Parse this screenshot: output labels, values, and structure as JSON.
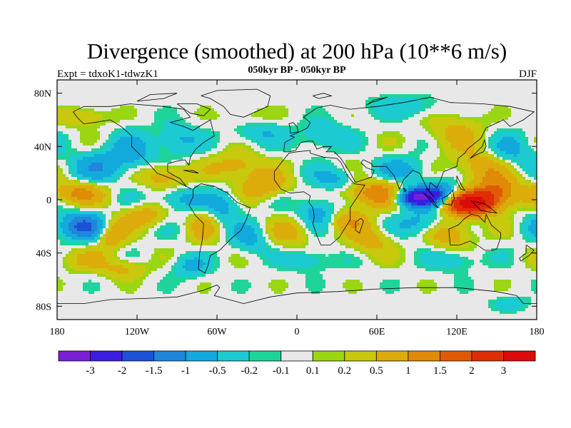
{
  "chart_data": {
    "type": "heatmap",
    "title": "Divergence (smoothed) at 200 hPa (10**6 m/s)",
    "subtitle": "050kyr BP - 050kyr BP",
    "left_label": "Expt = tdxoK1-tdwzK1",
    "right_label": "DJF",
    "x_range": [
      -180,
      180
    ],
    "y_range": [
      -90,
      90
    ],
    "x_ticks": [
      {
        "value": -180,
        "label": "180"
      },
      {
        "value": -120,
        "label": "120W"
      },
      {
        "value": -60,
        "label": "60W"
      },
      {
        "value": 0,
        "label": "0"
      },
      {
        "value": 60,
        "label": "60E"
      },
      {
        "value": 120,
        "label": "120E"
      },
      {
        "value": 180,
        "label": "180"
      }
    ],
    "y_ticks": [
      {
        "value": 80,
        "label": "80N"
      },
      {
        "value": 40,
        "label": "40N"
      },
      {
        "value": 0,
        "label": "0"
      },
      {
        "value": -40,
        "label": "40S"
      },
      {
        "value": -80,
        "label": "80S"
      }
    ],
    "colorbar": {
      "labels": [
        "-3",
        "-2",
        "-1.5",
        "-1",
        "-0.5",
        "-0.2",
        "-0.1",
        "0.1",
        "0.2",
        "0.5",
        "1",
        "1.5",
        "2",
        "3"
      ],
      "colors": [
        "#7a1fd6",
        "#3a1ee0",
        "#1c52d8",
        "#1f86dc",
        "#12aadc",
        "#1ccad2",
        "#1ed49a",
        "#e8e8e8",
        "#9ad612",
        "#c8c80c",
        "#dcac0a",
        "#e08a08",
        "#e05a06",
        "#de2e06",
        "#dc0a0a"
      ],
      "thresholds": [
        -3,
        -2,
        -1.5,
        -1,
        -0.5,
        -0.2,
        -0.1,
        0.1,
        0.2,
        0.5,
        1,
        1.5,
        2,
        3
      ]
    },
    "field_features": [
      {
        "lon": 90,
        "lat": 2,
        "value": -3.2,
        "sigma_lon": 11,
        "sigma_lat": 5
      },
      {
        "lon": 130,
        "lat": -3,
        "value": 3.4,
        "sigma_lon": 13,
        "sigma_lat": 6
      },
      {
        "lon": 150,
        "lat": 6,
        "value": 1.6,
        "sigma_lon": 12,
        "sigma_lat": 8
      },
      {
        "lon": 108,
        "lat": 5,
        "value": -1.3,
        "sigma_lon": 9,
        "sigma_lat": 6
      },
      {
        "lon": 60,
        "lat": 5,
        "value": 1.4,
        "sigma_lon": 18,
        "sigma_lat": 7
      },
      {
        "lon": 115,
        "lat": -25,
        "value": 1.0,
        "sigma_lon": 12,
        "sigma_lat": 8
      },
      {
        "lon": 140,
        "lat": 25,
        "value": 0.9,
        "sigma_lon": 15,
        "sigma_lat": 8
      },
      {
        "lon": 120,
        "lat": 50,
        "value": 0.6,
        "sigma_lon": 15,
        "sigma_lat": 10
      },
      {
        "lon": 160,
        "lat": 35,
        "value": -0.7,
        "sigma_lon": 12,
        "sigma_lat": 10
      },
      {
        "lon": 80,
        "lat": 22,
        "value": -0.7,
        "sigma_lon": 14,
        "sigma_lat": 7
      },
      {
        "lon": 95,
        "lat": -18,
        "value": -0.8,
        "sigma_lon": 14,
        "sigma_lat": 7
      },
      {
        "lon": 55,
        "lat": -30,
        "value": 0.7,
        "sigma_lon": 12,
        "sigma_lat": 8
      },
      {
        "lon": 30,
        "lat": 15,
        "value": -0.7,
        "sigma_lon": 12,
        "sigma_lat": 6
      },
      {
        "lon": 15,
        "lat": -8,
        "value": -0.8,
        "sigma_lon": 10,
        "sigma_lat": 8
      },
      {
        "lon": 40,
        "lat": -15,
        "value": 0.8,
        "sigma_lon": 10,
        "sigma_lat": 6
      },
      {
        "lon": -5,
        "lat": -25,
        "value": 0.6,
        "sigma_lon": 12,
        "sigma_lat": 8
      },
      {
        "lon": -25,
        "lat": 10,
        "value": 0.9,
        "sigma_lon": 13,
        "sigma_lat": 7
      },
      {
        "lon": -45,
        "lat": 25,
        "value": 0.8,
        "sigma_lon": 14,
        "sigma_lat": 7
      },
      {
        "lon": -55,
        "lat": -5,
        "value": -0.7,
        "sigma_lon": 10,
        "sigma_lat": 8
      },
      {
        "lon": -35,
        "lat": -30,
        "value": -0.6,
        "sigma_lon": 10,
        "sigma_lat": 8
      },
      {
        "lon": -70,
        "lat": -20,
        "value": 0.6,
        "sigma_lon": 8,
        "sigma_lat": 10
      },
      {
        "lon": -90,
        "lat": 0,
        "value": -0.7,
        "sigma_lon": 12,
        "sigma_lat": 6
      },
      {
        "lon": -100,
        "lat": 18,
        "value": 0.9,
        "sigma_lon": 12,
        "sigma_lat": 6
      },
      {
        "lon": -115,
        "lat": -12,
        "value": 0.8,
        "sigma_lon": 12,
        "sigma_lat": 6
      },
      {
        "lon": -160,
        "lat": -20,
        "value": -1.6,
        "sigma_lon": 14,
        "sigma_lat": 7
      },
      {
        "lon": -140,
        "lat": -25,
        "value": 1.1,
        "sigma_lon": 8,
        "sigma_lat": 8
      },
      {
        "lon": -165,
        "lat": 5,
        "value": 1.1,
        "sigma_lon": 14,
        "sigma_lat": 6
      },
      {
        "lon": -150,
        "lat": 25,
        "value": -0.8,
        "sigma_lon": 14,
        "sigma_lat": 8
      },
      {
        "lon": -125,
        "lat": 35,
        "value": -0.7,
        "sigma_lon": 12,
        "sigma_lat": 10
      },
      {
        "lon": -90,
        "lat": 45,
        "value": -0.6,
        "sigma_lon": 12,
        "sigma_lat": 8
      },
      {
        "lon": -30,
        "lat": 52,
        "value": -0.6,
        "sigma_lon": 14,
        "sigma_lat": 7
      },
      {
        "lon": 20,
        "lat": 48,
        "value": -0.6,
        "sigma_lon": 12,
        "sigma_lat": 7
      },
      {
        "lon": -35,
        "lat": 60,
        "value": 0.4,
        "sigma_lon": 14,
        "sigma_lat": 6
      },
      {
        "lon": -160,
        "lat": -45,
        "value": 0.5,
        "sigma_lon": 14,
        "sigma_lat": 6
      },
      {
        "lon": -80,
        "lat": -50,
        "value": -0.6,
        "sigma_lon": 10,
        "sigma_lat": 6
      },
      {
        "lon": 10,
        "lat": -45,
        "value": -0.5,
        "sigma_lon": 12,
        "sigma_lat": 6
      },
      {
        "lon": 120,
        "lat": -45,
        "value": -0.5,
        "sigma_lon": 12,
        "sigma_lat": 6
      },
      {
        "lon": -130,
        "lat": -52,
        "value": 0.6,
        "sigma_lon": 12,
        "sigma_lat": 5
      },
      {
        "lon": -160,
        "lat": 62,
        "value": 0.5,
        "sigma_lon": 14,
        "sigma_lat": 5
      },
      {
        "lon": 80,
        "lat": 70,
        "value": -0.4,
        "sigma_lon": 20,
        "sigma_lat": 6
      },
      {
        "lon": 160,
        "lat": -78,
        "value": -0.4,
        "sigma_lon": 10,
        "sigma_lat": 4
      }
    ]
  }
}
